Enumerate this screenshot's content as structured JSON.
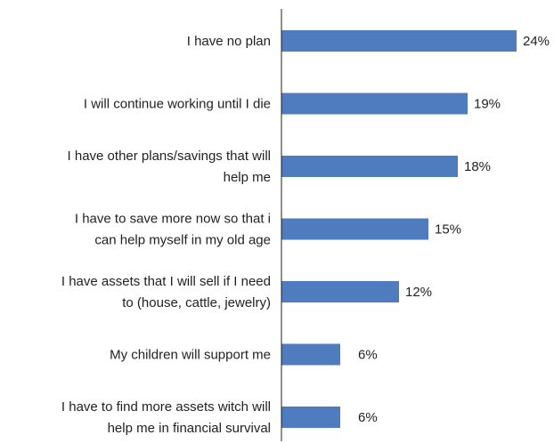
{
  "chart_data": {
    "type": "bar",
    "orientation": "horizontal",
    "categories": [
      [
        "I have no plan"
      ],
      [
        "I will continue working until I die"
      ],
      [
        "I have other plans/savings that will",
        "help me"
      ],
      [
        "I have to save more now so that i",
        "can help myself in my old age"
      ],
      [
        "I have assets that I will sell if I need",
        "to (house, cattle, jewelry)"
      ],
      [
        "My children will support me"
      ],
      [
        "I have to find more assets witch will",
        "help me in financial survival"
      ]
    ],
    "values": [
      24,
      19,
      18,
      15,
      12,
      6,
      6
    ],
    "value_labels": [
      "24%",
      "19%",
      "18%",
      "15%",
      "12%",
      "6%",
      "6%"
    ],
    "xlim": [
      0,
      25
    ],
    "grid": false,
    "bar_color": "#4f7bbf",
    "axis_color": "#222222",
    "title": "",
    "xlabel": "",
    "ylabel": ""
  }
}
